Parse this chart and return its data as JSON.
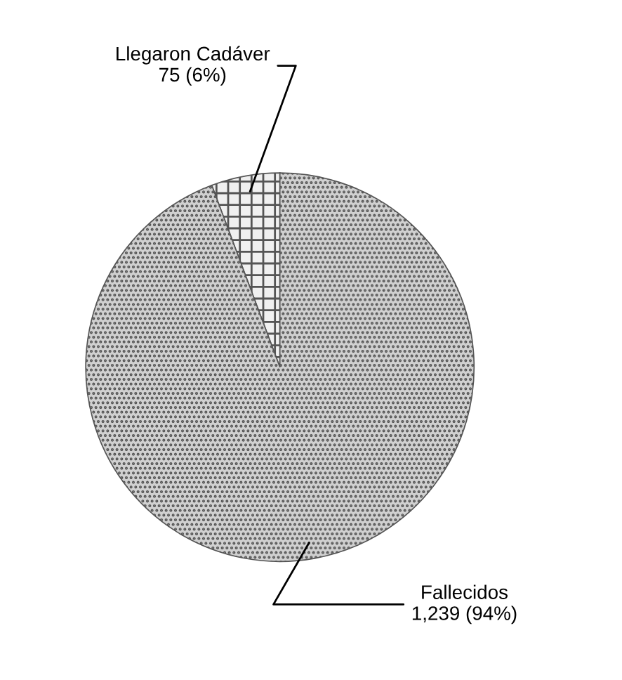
{
  "chart_data": {
    "type": "pie",
    "categories": [
      "Llegaron Cadáver",
      "Fallecidos"
    ],
    "values": [
      75,
      1239
    ],
    "value_labels": [
      "75 (6%)",
      "1,239 (94%)"
    ],
    "colors": [
      "#f0f0f0",
      "#d0d0d0"
    ]
  }
}
